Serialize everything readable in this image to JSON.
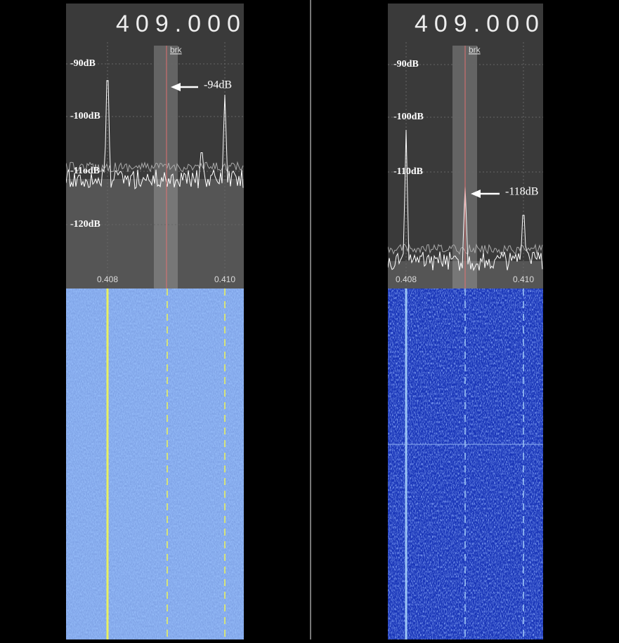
{
  "panels": [
    {
      "frequency": "409.000",
      "db_labels": [
        "-90dB",
        "-100dB",
        "-11odB",
        "-120dB"
      ],
      "marker_label": "brk",
      "annotation": "-94dB",
      "freq_labels": [
        "0.408",
        "0.410"
      ]
    },
    {
      "frequency": "409.000",
      "db_labels": [
        "-90dB",
        "-100dB",
        "-110dB"
      ],
      "marker_label": "brk",
      "annotation": "-118dB",
      "freq_labels": [
        "0.408",
        "0.410"
      ]
    }
  ]
}
